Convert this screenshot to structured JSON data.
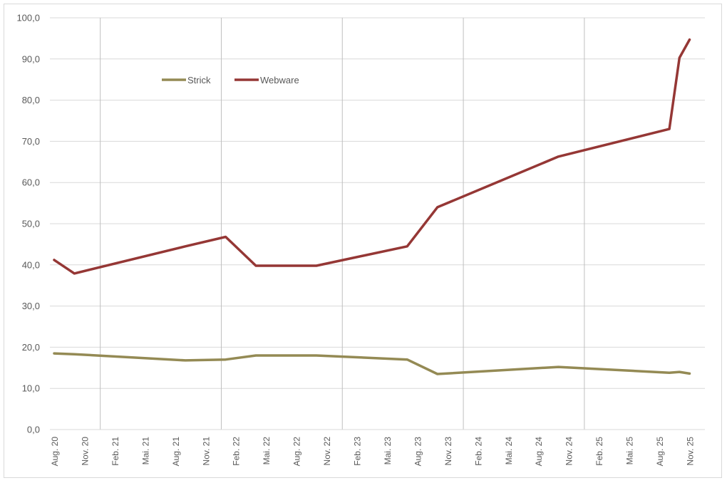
{
  "chart_data": {
    "type": "line",
    "x_tick_labels": [
      "Aug. 20",
      "Nov. 20",
      "Feb. 21",
      "Mai. 21",
      "Aug. 21",
      "Nov. 21",
      "Feb. 22",
      "Mai. 22",
      "Aug. 22",
      "Nov. 22",
      "Feb. 23",
      "Mai. 23",
      "Aug. 23",
      "Nov. 23",
      "Feb. 24",
      "Mai. 24",
      "Aug. 24",
      "Nov. 24",
      "Feb. 25",
      "Mai. 25",
      "Aug. 25",
      "Nov. 25"
    ],
    "y_tick_labels": [
      "0,0",
      "10,0",
      "20,0",
      "30,0",
      "40,0",
      "50,0",
      "60,0",
      "70,0",
      "80,0",
      "90,0",
      "100,0"
    ],
    "ylim": [
      0,
      100
    ],
    "grid": "horizontal",
    "year_dividers_after": [
      "Dez. 20",
      "Jan. 22",
      "Jan. 23",
      "Jan. 24",
      "Jan. 25"
    ],
    "legend_position": "top-left",
    "series": [
      {
        "name": "Strick",
        "color": "#948a54",
        "points": [
          {
            "x": "2020-08",
            "y": 18.5
          },
          {
            "x": "2020-10",
            "y": 18.3
          },
          {
            "x": "2021-09",
            "y": 16.8
          },
          {
            "x": "2022-01",
            "y": 17.0
          },
          {
            "x": "2022-04",
            "y": 18.0
          },
          {
            "x": "2022-10",
            "y": 18.0
          },
          {
            "x": "2023-07",
            "y": 17.0
          },
          {
            "x": "2023-10",
            "y": 13.5
          },
          {
            "x": "2024-10",
            "y": 15.2
          },
          {
            "x": "2025-09",
            "y": 13.8
          },
          {
            "x": "2025-10",
            "y": 14.0
          },
          {
            "x": "2025-11",
            "y": 13.6
          }
        ]
      },
      {
        "name": "Webware",
        "color": "#953735",
        "points": [
          {
            "x": "2020-08",
            "y": 41.2
          },
          {
            "x": "2020-10",
            "y": 37.9
          },
          {
            "x": "2021-09",
            "y": 44.5
          },
          {
            "x": "2022-01",
            "y": 46.8
          },
          {
            "x": "2022-04",
            "y": 39.8
          },
          {
            "x": "2022-10",
            "y": 39.8
          },
          {
            "x": "2023-07",
            "y": 44.5
          },
          {
            "x": "2023-10",
            "y": 54.0
          },
          {
            "x": "2024-10",
            "y": 66.3
          },
          {
            "x": "2025-09",
            "y": 73.0
          },
          {
            "x": "2025-10",
            "y": 90.3
          },
          {
            "x": "2025-11",
            "y": 94.7
          }
        ]
      }
    ]
  }
}
